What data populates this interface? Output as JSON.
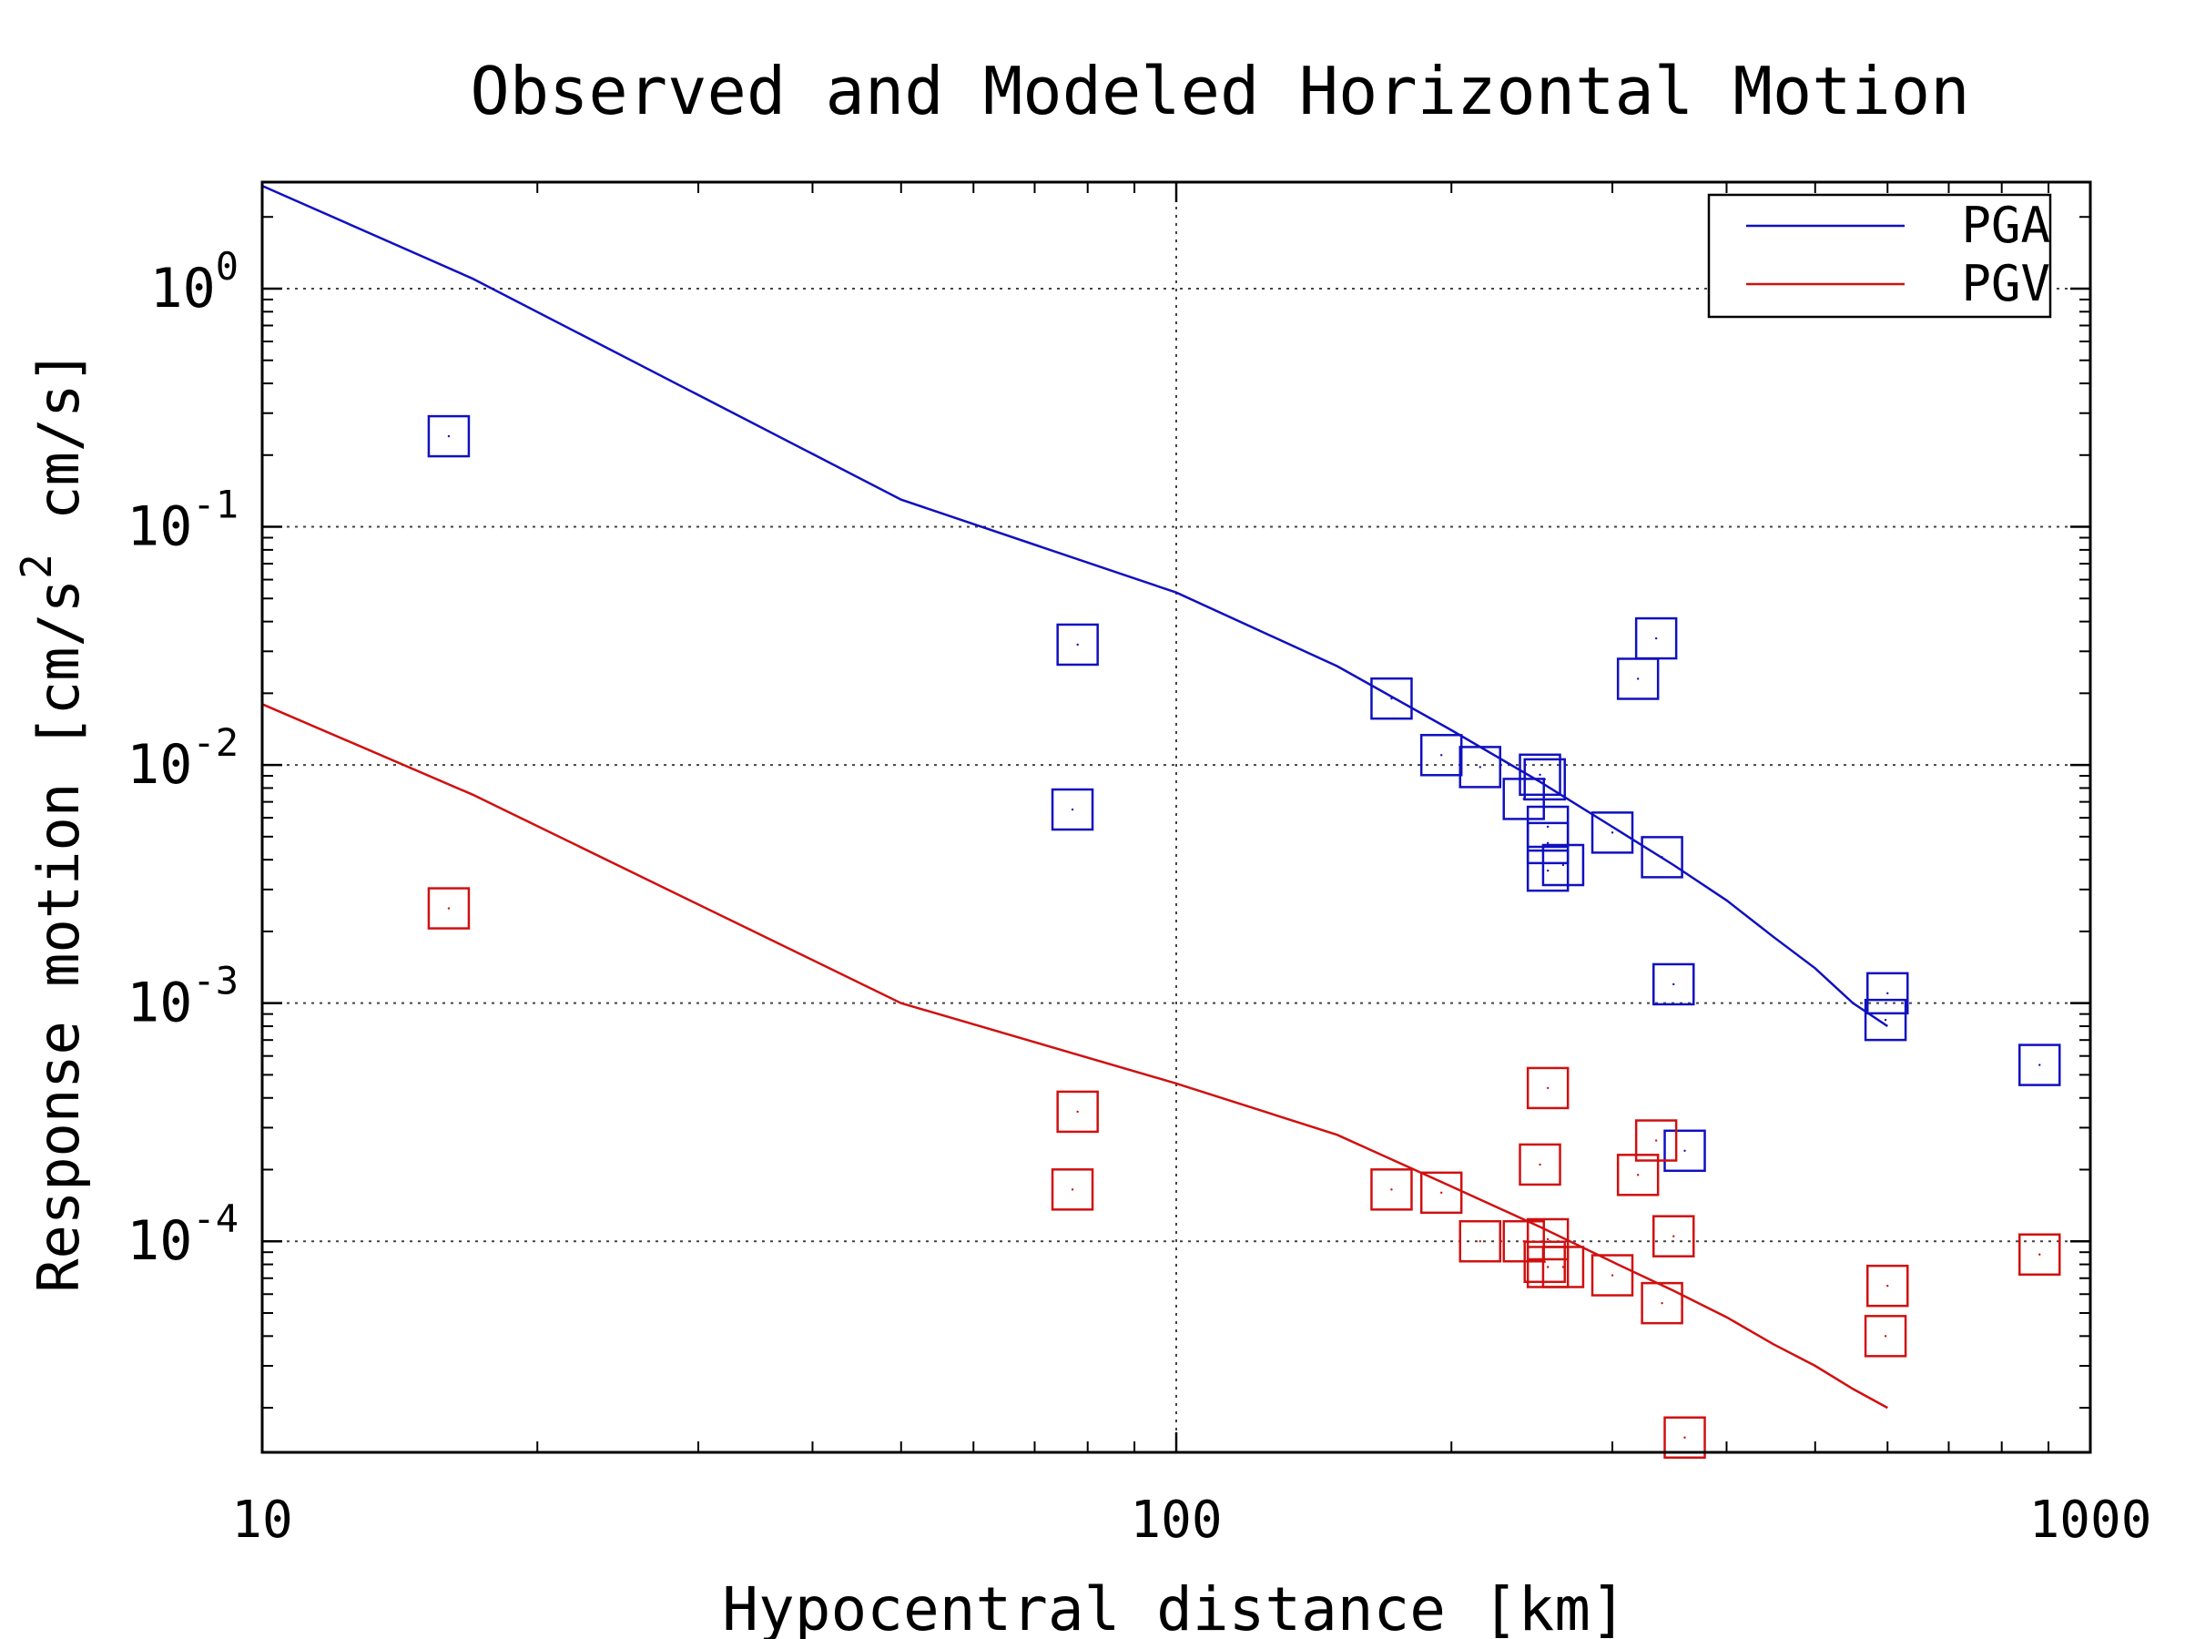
{
  "chart_data": {
    "type": "scatter",
    "title": "Observed and Modeled Horizontal Motion",
    "xlabel": "Hypocentral distance [km]",
    "ylabel_parts": [
      "Response motion [cm/s",
      "2",
      "  cm/s]"
    ],
    "xscale": "log",
    "yscale": "log",
    "xlim": [
      10,
      1000
    ],
    "ylim": [
      1.3e-05,
      2.8
    ],
    "xticks": [
      {
        "value": 10,
        "label": "10"
      },
      {
        "value": 100,
        "label": "100"
      },
      {
        "value": 1000,
        "label": "1000"
      }
    ],
    "yticks": [
      {
        "value": 1,
        "base": "10",
        "exp": "0"
      },
      {
        "value": 0.1,
        "base": "10",
        "exp": "-1"
      },
      {
        "value": 0.01,
        "base": "10",
        "exp": "-2"
      },
      {
        "value": 0.001,
        "base": "10",
        "exp": "-3"
      },
      {
        "value": 0.0001,
        "base": "10",
        "exp": "-4"
      }
    ],
    "grid": true,
    "legend_position": "top-right",
    "colors": {
      "PGA": "#1010c0",
      "PGV": "#d01010"
    },
    "series": [
      {
        "name": "PGA",
        "kind": "line",
        "color": "#1010c0",
        "x": [
          10,
          17,
          50,
          100,
          150,
          200,
          250,
          300,
          350,
          400,
          450,
          500,
          550,
          600
        ],
        "y": [
          2.7,
          1.1,
          0.13,
          0.053,
          0.026,
          0.014,
          0.0085,
          0.0055,
          0.0038,
          0.0027,
          0.0019,
          0.0014,
          0.001,
          0.0008
        ]
      },
      {
        "name": "PGV",
        "kind": "line",
        "color": "#d01010",
        "x": [
          10,
          17,
          50,
          100,
          150,
          200,
          250,
          300,
          350,
          400,
          450,
          500,
          550,
          600
        ],
        "y": [
          0.018,
          0.0075,
          0.001,
          0.00046,
          0.00028,
          0.00017,
          0.000115,
          8.2e-05,
          6.2e-05,
          4.8e-05,
          3.7e-05,
          3e-05,
          2.4e-05,
          2e-05
        ]
      },
      {
        "name": "PGA observed",
        "kind": "markers",
        "marker": "square",
        "color": "#1010c0",
        "points": [
          [
            16,
            0.24
          ],
          [
            78,
            0.032
          ],
          [
            77,
            0.0065
          ],
          [
            172,
            0.019
          ],
          [
            195,
            0.011
          ],
          [
            215,
            0.0098
          ],
          [
            240,
            0.0072
          ],
          [
            250,
            0.0091
          ],
          [
            253,
            0.0087
          ],
          [
            255,
            0.0055
          ],
          [
            255,
            0.0047
          ],
          [
            255,
            0.0036
          ],
          [
            265,
            0.0038
          ],
          [
            300,
            0.0052
          ],
          [
            320,
            0.023
          ],
          [
            335,
            0.034
          ],
          [
            340,
            0.0041
          ],
          [
            350,
            0.0012
          ],
          [
            360,
            0.00024
          ],
          [
            600,
            0.0011
          ],
          [
            597,
            0.00085
          ],
          [
            880,
            0.00055
          ]
        ]
      },
      {
        "name": "PGV observed",
        "kind": "markers",
        "marker": "square",
        "color": "#d01010",
        "points": [
          [
            16,
            0.0025
          ],
          [
            78,
            0.00035
          ],
          [
            77,
            0.000165
          ],
          [
            172,
            0.000165
          ],
          [
            195,
            0.00016
          ],
          [
            215,
            0.0001
          ],
          [
            240,
            0.0001
          ],
          [
            250,
            0.00021
          ],
          [
            255,
            0.00044
          ],
          [
            255,
            0.000102
          ],
          [
            253,
            8.2e-05
          ],
          [
            255,
            7.8e-05
          ],
          [
            265,
            7.8e-05
          ],
          [
            300,
            7.2e-05
          ],
          [
            320,
            0.00019
          ],
          [
            335,
            0.000265
          ],
          [
            340,
            5.5e-05
          ],
          [
            350,
            0.000105
          ],
          [
            360,
            1.5e-05
          ],
          [
            600,
            6.5e-05
          ],
          [
            597,
            4e-05
          ],
          [
            880,
            8.8e-05
          ]
        ]
      }
    ]
  }
}
